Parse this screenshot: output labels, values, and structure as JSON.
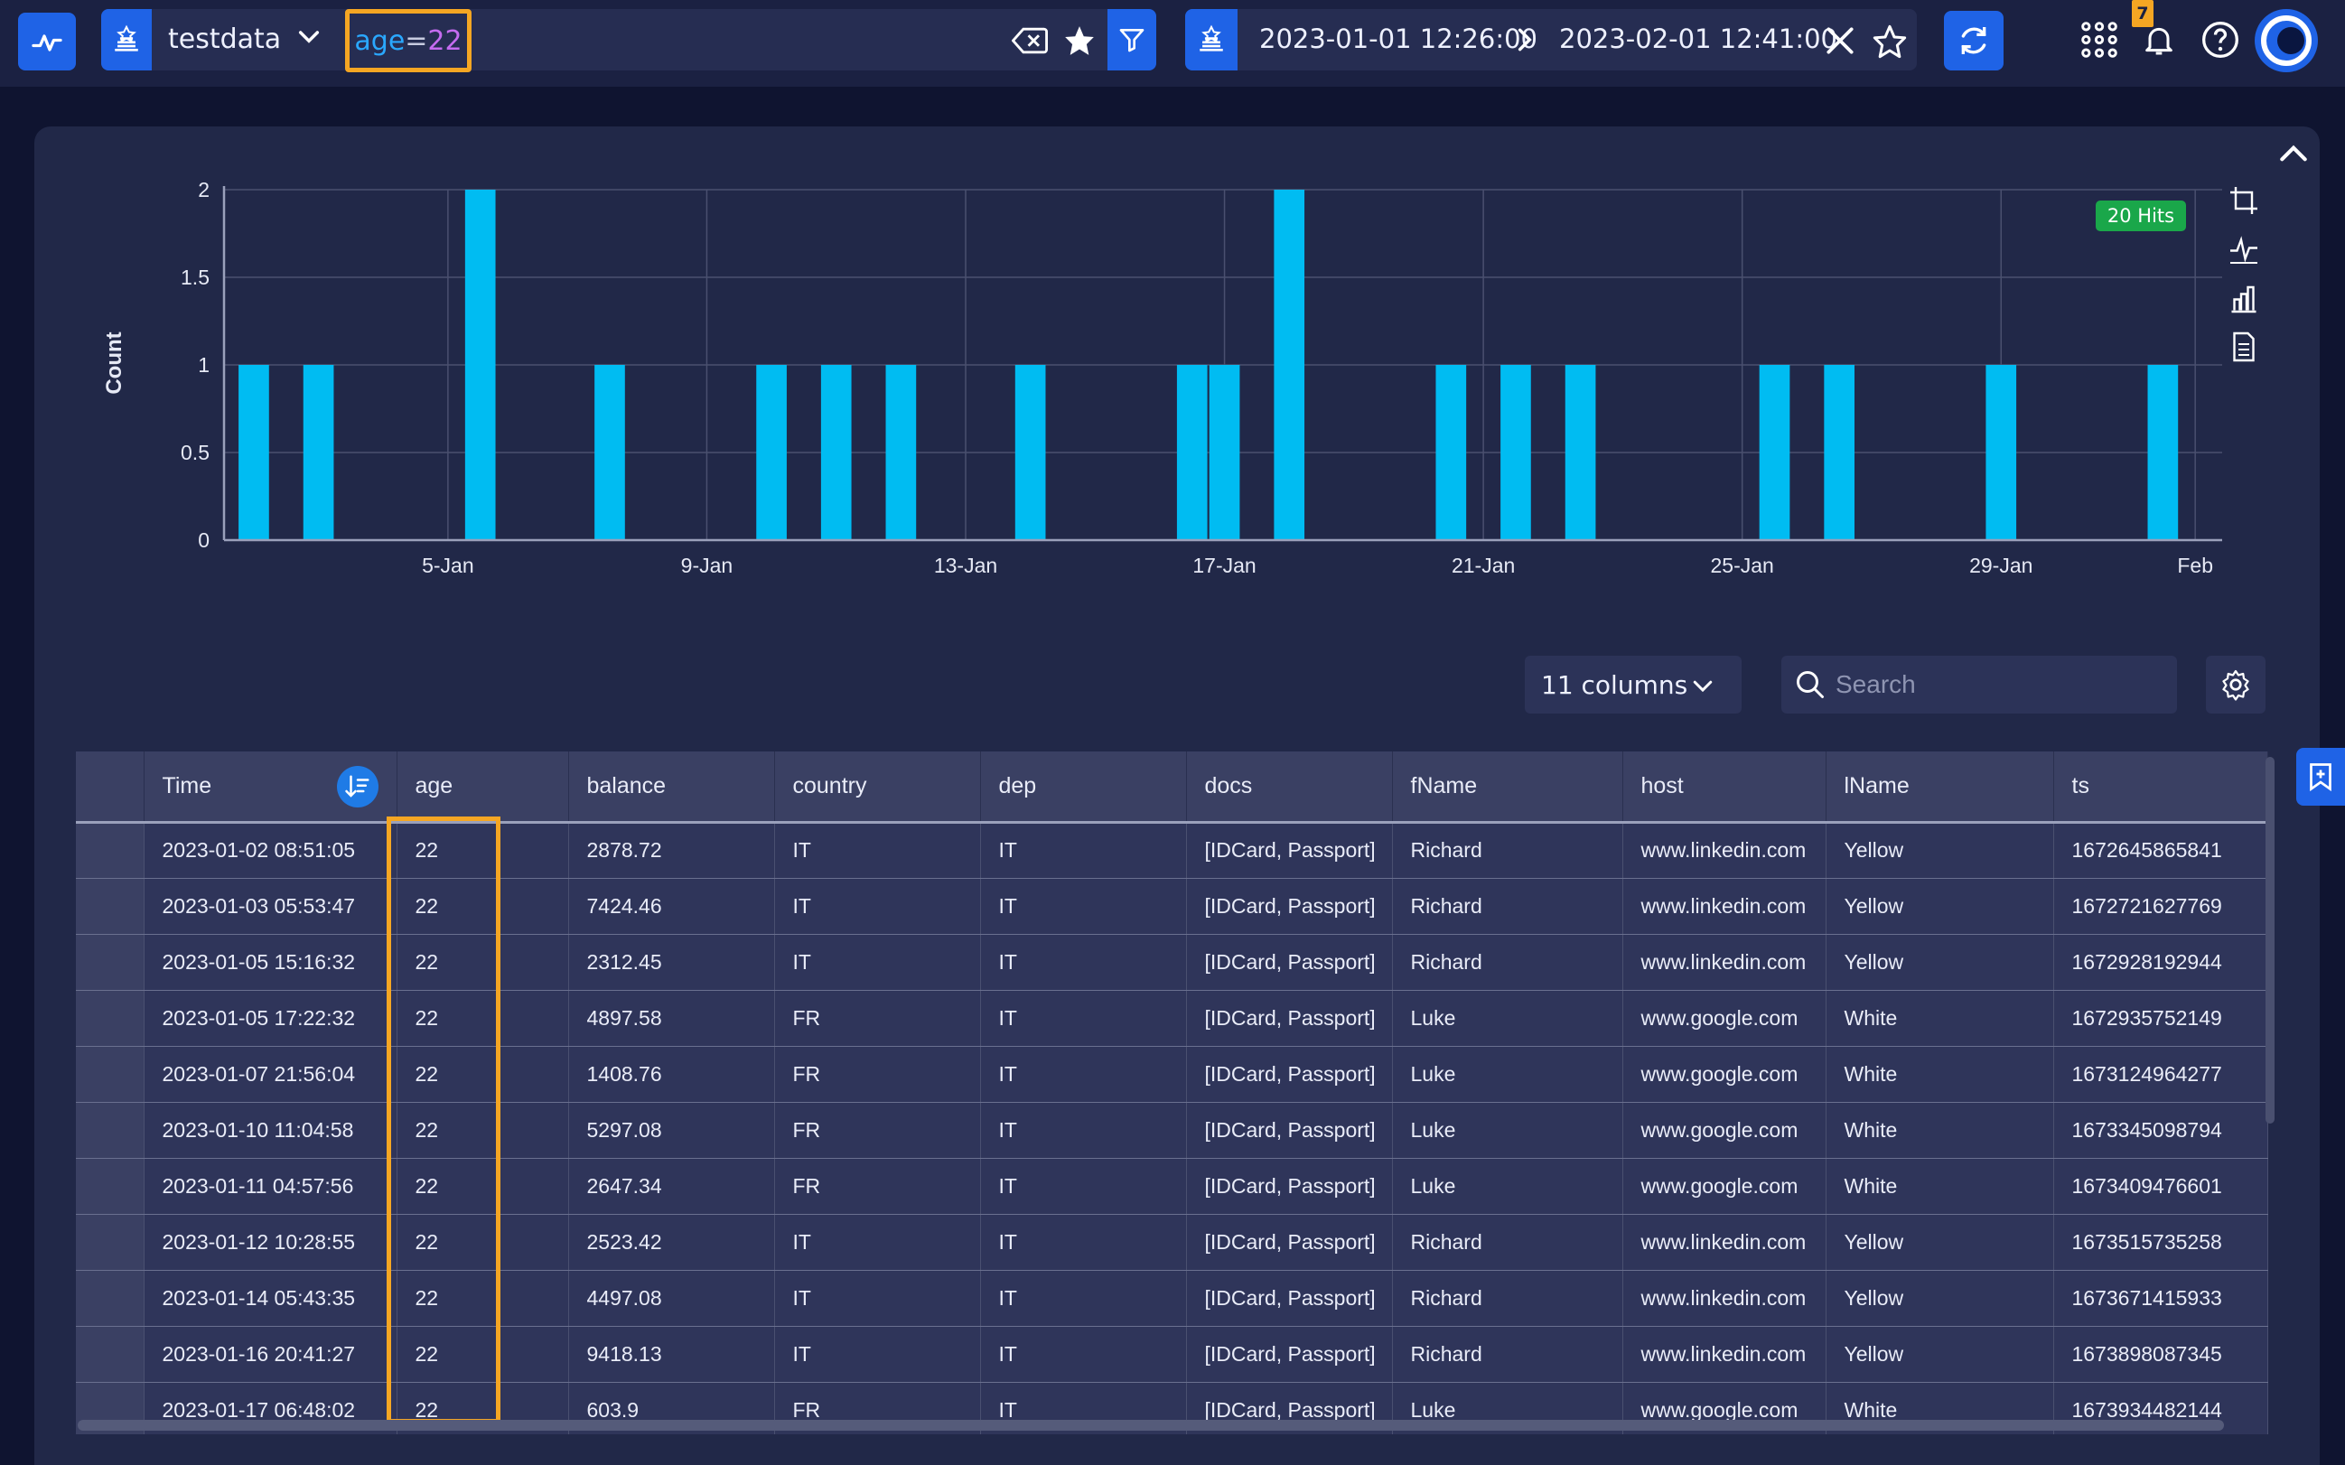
{
  "toolbar": {
    "datasource": "testdata",
    "query": {
      "field": "age",
      "op": "=",
      "value": "22"
    },
    "time_from": "2023-01-01 12:26:00",
    "time_to": "2023-02-01 12:41:00",
    "notification_count": "7"
  },
  "chart": {
    "hits_badge": "20 Hits"
  },
  "chart_data": {
    "type": "bar",
    "ylabel": "Count",
    "xlabel": "",
    "ylim": [
      0,
      2
    ],
    "yticks": [
      "0",
      "0.5",
      "1",
      "1.5",
      "2"
    ],
    "x_tick_labels": [
      "5-Jan",
      "9-Jan",
      "13-Jan",
      "17-Jan",
      "21-Jan",
      "25-Jan",
      "29-Jan",
      "Feb"
    ],
    "x_tick_days": [
      4,
      8,
      12,
      16,
      20,
      24,
      28,
      31
    ],
    "x_range_days": [
      0.54,
      31.5
    ],
    "bins": [
      {
        "day": 1.0,
        "value": 1
      },
      {
        "day": 2.0,
        "value": 1
      },
      {
        "day": 4.5,
        "value": 2
      },
      {
        "day": 6.5,
        "value": 1
      },
      {
        "day": 9.0,
        "value": 1
      },
      {
        "day": 10.0,
        "value": 1
      },
      {
        "day": 11.0,
        "value": 1
      },
      {
        "day": 13.0,
        "value": 1
      },
      {
        "day": 15.5,
        "value": 1
      },
      {
        "day": 16.0,
        "value": 1
      },
      {
        "day": 17.0,
        "value": 2
      },
      {
        "day": 19.5,
        "value": 1
      },
      {
        "day": 20.5,
        "value": 1
      },
      {
        "day": 21.5,
        "value": 1
      },
      {
        "day": 24.5,
        "value": 1
      },
      {
        "day": 25.5,
        "value": 1
      },
      {
        "day": 28.0,
        "value": 1
      },
      {
        "day": 30.5,
        "value": 1
      }
    ],
    "bar_color": "#00bcf2",
    "grid": true
  },
  "table_controls": {
    "columns_label": "11 columns",
    "search_placeholder": "Search"
  },
  "table": {
    "headers": [
      "Time",
      "age",
      "balance",
      "country",
      "dep",
      "docs",
      "fName",
      "host",
      "lName",
      "ts"
    ],
    "rows": [
      [
        "2023-01-02 08:51:05",
        "22",
        "2878.72",
        "IT",
        "IT",
        "[IDCard, Passport]",
        "Richard",
        "www.linkedin.com",
        "Yellow",
        "1672645865841"
      ],
      [
        "2023-01-03 05:53:47",
        "22",
        "7424.46",
        "IT",
        "IT",
        "[IDCard, Passport]",
        "Richard",
        "www.linkedin.com",
        "Yellow",
        "1672721627769"
      ],
      [
        "2023-01-05 15:16:32",
        "22",
        "2312.45",
        "IT",
        "IT",
        "[IDCard, Passport]",
        "Richard",
        "www.linkedin.com",
        "Yellow",
        "1672928192944"
      ],
      [
        "2023-01-05 17:22:32",
        "22",
        "4897.58",
        "FR",
        "IT",
        "[IDCard, Passport]",
        "Luke",
        "www.google.com",
        "White",
        "1672935752149"
      ],
      [
        "2023-01-07 21:56:04",
        "22",
        "1408.76",
        "FR",
        "IT",
        "[IDCard, Passport]",
        "Luke",
        "www.google.com",
        "White",
        "1673124964277"
      ],
      [
        "2023-01-10 11:04:58",
        "22",
        "5297.08",
        "FR",
        "IT",
        "[IDCard, Passport]",
        "Luke",
        "www.google.com",
        "White",
        "1673345098794"
      ],
      [
        "2023-01-11 04:57:56",
        "22",
        "2647.34",
        "FR",
        "IT",
        "[IDCard, Passport]",
        "Luke",
        "www.google.com",
        "White",
        "1673409476601"
      ],
      [
        "2023-01-12 10:28:55",
        "22",
        "2523.42",
        "IT",
        "IT",
        "[IDCard, Passport]",
        "Richard",
        "www.linkedin.com",
        "Yellow",
        "1673515735258"
      ],
      [
        "2023-01-14 05:43:35",
        "22",
        "4497.08",
        "IT",
        "IT",
        "[IDCard, Passport]",
        "Richard",
        "www.linkedin.com",
        "Yellow",
        "1673671415933"
      ],
      [
        "2023-01-16 20:41:27",
        "22",
        "9418.13",
        "IT",
        "IT",
        "[IDCard, Passport]",
        "Richard",
        "www.linkedin.com",
        "Yellow",
        "1673898087345"
      ],
      [
        "2023-01-17 06:48:02",
        "22",
        "603.9",
        "FR",
        "IT",
        "[IDCard, Passport]",
        "Luke",
        "www.google.com",
        "White",
        "1673934482144"
      ]
    ]
  },
  "colors": {
    "accent": "#1f63e6",
    "highlight": "#f5a623",
    "hits_green": "#1aa74a"
  }
}
